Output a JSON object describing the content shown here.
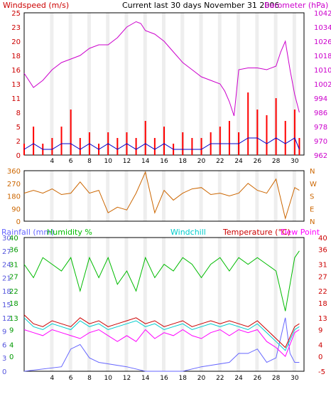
{
  "header": {
    "left_title": "Windspeed (m/s)",
    "center_title": "Current last 30 days November 31 2006",
    "right_title": "Barometer (hPa)"
  },
  "colors": {
    "frame": "#000000",
    "grid_major": "#d8d8d8",
    "wind_gust": "#ff0000",
    "wind_avg": "#0000cc",
    "barometer": "#cc00cc",
    "direction": "#cc6600",
    "rainfall": "#6666ff",
    "humidity": "#00bb00",
    "windchill": "#00cccc",
    "temperature": "#cc0000",
    "dewpoint": "#ff00ff"
  },
  "chart_data": [
    {
      "type": "line",
      "title": "Current last 30 days November 31 2006",
      "xlabel": "",
      "x_ticks": [
        "4",
        "6",
        "8",
        "10",
        "12",
        "14",
        "16",
        "18",
        "20",
        "22",
        "24",
        "26",
        "28",
        "30"
      ],
      "x_range": [
        1,
        31
      ],
      "left_axis": {
        "label": "Windspeed (m/s)",
        "range": [
          0,
          25
        ],
        "ticks": [
          "0",
          "2",
          "5",
          "8",
          "11",
          "13",
          "16",
          "18",
          "20",
          "23",
          "25"
        ]
      },
      "right_axis": {
        "label": "Barometer (hPa)",
        "range": [
          962,
          1042
        ],
        "ticks": [
          "962",
          "970",
          "978",
          "986",
          "994",
          "1002",
          "1010",
          "1018",
          "1026",
          "1034",
          "1042"
        ]
      },
      "series": [
        {
          "name": "Barometer",
          "axis": "right",
          "x": [
            1,
            2,
            3,
            4,
            5,
            6,
            7,
            8,
            9,
            10,
            11,
            12,
            13,
            13.5,
            14,
            15,
            16,
            17,
            18,
            19,
            20,
            21,
            22,
            22.5,
            23,
            23.5,
            24,
            25,
            26,
            27,
            28,
            28.5,
            29,
            29.5,
            30,
            30.5
          ],
          "y": [
            1008,
            1000,
            1004,
            1010,
            1014,
            1016,
            1018,
            1022,
            1024,
            1024,
            1028,
            1034,
            1037,
            1036,
            1032,
            1030,
            1026,
            1020,
            1014,
            1010,
            1006,
            1004,
            1002,
            998,
            992,
            984,
            1010,
            1011,
            1011,
            1010,
            1012,
            1020,
            1026,
            1010,
            996,
            986
          ]
        },
        {
          "name": "Wind gust",
          "axis": "left",
          "x": [
            1,
            2,
            3,
            4,
            5,
            6,
            7,
            8,
            9,
            10,
            11,
            12,
            13,
            14,
            15,
            16,
            17,
            18,
            19,
            20,
            21,
            22,
            23,
            24,
            25,
            26,
            27,
            28,
            29,
            30,
            30.5
          ],
          "y": [
            2,
            5,
            2,
            3,
            5,
            8,
            3,
            4,
            2,
            4,
            3,
            4,
            3,
            6,
            3,
            5,
            2,
            4,
            3,
            3,
            4,
            5,
            6,
            4,
            11,
            8,
            7,
            10,
            6,
            8,
            3
          ]
        },
        {
          "name": "Wind average",
          "axis": "left",
          "x": [
            1,
            2,
            3,
            4,
            5,
            6,
            7,
            8,
            9,
            10,
            11,
            12,
            13,
            14,
            15,
            16,
            17,
            18,
            19,
            20,
            21,
            22,
            23,
            24,
            25,
            26,
            27,
            28,
            29,
            30,
            30.5
          ],
          "y": [
            1,
            2,
            1,
            1,
            2,
            2,
            1,
            2,
            1,
            2,
            1,
            2,
            1,
            2,
            1,
            2,
            1,
            1,
            1,
            1,
            2,
            2,
            2,
            2,
            3,
            3,
            2,
            3,
            2,
            3,
            1
          ]
        }
      ]
    },
    {
      "type": "line",
      "x_ticks": [],
      "x_range": [
        1,
        31
      ],
      "left_axis": {
        "label": "",
        "range": [
          0,
          360
        ],
        "ticks": [
          "0",
          "90",
          "180",
          "270",
          "360"
        ]
      },
      "right_axis": {
        "label": "",
        "range": [
          0,
          360
        ],
        "ticks": [
          "N",
          "E",
          "S",
          "W",
          "N"
        ]
      },
      "series": [
        {
          "name": "Wind direction",
          "axis": "left",
          "x": [
            1,
            2,
            3,
            4,
            5,
            6,
            7,
            8,
            9,
            10,
            11,
            12,
            13,
            14,
            15,
            16,
            17,
            18,
            19,
            20,
            21,
            22,
            23,
            24,
            25,
            26,
            27,
            28,
            29,
            30,
            30.5
          ],
          "y": [
            200,
            220,
            200,
            230,
            190,
            200,
            280,
            200,
            220,
            60,
            100,
            80,
            200,
            350,
            60,
            220,
            150,
            200,
            230,
            240,
            190,
            200,
            180,
            200,
            270,
            220,
            200,
            300,
            20,
            240,
            220
          ]
        }
      ]
    },
    {
      "type": "line",
      "x_ticks": [
        "4",
        "6",
        "8",
        "10",
        "12",
        "14",
        "16",
        "18",
        "20",
        "22",
        "24",
        "26",
        "28",
        "30"
      ],
      "x_range": [
        1,
        31
      ],
      "legend": [
        "Rainfall (mm)",
        "Humidity %",
        "Windchill",
        "Temperature (°C)",
        "Dew Point"
      ],
      "rain_axis": {
        "label": "Rainfall (mm)",
        "range": [
          0,
          30
        ],
        "ticks": [
          "0",
          "3",
          "6",
          "9",
          "12",
          "15",
          "18",
          "21",
          "24",
          "27",
          "30"
        ]
      },
      "humidity_axis": {
        "label": "Humidity %",
        "range": [
          0,
          100
        ],
        "ticks": [
          "0",
          "10",
          "20",
          "30",
          "40",
          "50",
          "60",
          "70",
          "80",
          "90",
          "100"
        ]
      },
      "temp_axis_left": {
        "range": [
          -5,
          40
        ],
        "ticks": [
          "0",
          "4",
          "9",
          "13",
          "18",
          "22",
          "27",
          "31",
          "36",
          "40"
        ]
      },
      "temp_axis_right": {
        "label": "Temperature (°C)",
        "range": [
          -5,
          40
        ],
        "ticks": [
          "-5",
          "0",
          "4",
          "9",
          "13",
          "18",
          "22",
          "27",
          "31",
          "36",
          "40"
        ]
      },
      "series": [
        {
          "name": "Humidity",
          "axis": "humidity",
          "x": [
            1,
            2,
            3,
            4,
            5,
            6,
            7,
            8,
            9,
            10,
            11,
            12,
            13,
            14,
            15,
            16,
            17,
            18,
            19,
            20,
            21,
            22,
            23,
            24,
            25,
            26,
            27,
            28,
            29,
            30,
            30.5
          ],
          "y": [
            80,
            70,
            85,
            80,
            75,
            85,
            60,
            85,
            70,
            85,
            65,
            75,
            60,
            85,
            70,
            80,
            75,
            85,
            80,
            70,
            80,
            85,
            75,
            85,
            80,
            85,
            80,
            75,
            45,
            85,
            90
          ]
        },
        {
          "name": "Temperature",
          "axis": "temp",
          "x": [
            1,
            2,
            3,
            4,
            5,
            6,
            7,
            8,
            9,
            10,
            11,
            12,
            13,
            14,
            15,
            16,
            17,
            18,
            19,
            20,
            21,
            22,
            23,
            24,
            25,
            26,
            27,
            28,
            29,
            30,
            30.5
          ],
          "y": [
            14,
            11,
            10,
            12,
            11,
            10,
            13,
            11,
            12,
            10,
            11,
            12,
            13,
            11,
            12,
            10,
            11,
            12,
            10,
            11,
            12,
            11,
            12,
            11,
            10,
            12,
            9,
            6,
            3,
            10,
            11
          ]
        },
        {
          "name": "Dew Point",
          "axis": "temp",
          "x": [
            1,
            2,
            3,
            4,
            5,
            6,
            7,
            8,
            9,
            10,
            11,
            12,
            13,
            14,
            15,
            16,
            17,
            18,
            19,
            20,
            21,
            22,
            23,
            24,
            25,
            26,
            27,
            28,
            29,
            30,
            30.5
          ],
          "y": [
            9,
            8,
            7,
            9,
            8,
            7,
            6,
            8,
            9,
            7,
            5,
            7,
            5,
            9,
            6,
            8,
            7,
            9,
            7,
            6,
            8,
            9,
            7,
            9,
            8,
            9,
            5,
            3,
            0,
            8,
            9
          ]
        },
        {
          "name": "Windchill",
          "axis": "temp",
          "x": [
            1,
            2,
            3,
            4,
            5,
            6,
            7,
            8,
            9,
            10,
            11,
            12,
            13,
            14,
            15,
            16,
            17,
            18,
            19,
            20,
            21,
            22,
            23,
            24,
            25,
            26,
            27,
            28,
            29,
            30,
            30.5
          ],
          "y": [
            13,
            10,
            9,
            11,
            10,
            9,
            12,
            10,
            11,
            9,
            10,
            11,
            12,
            10,
            11,
            9,
            10,
            11,
            9,
            10,
            11,
            10,
            11,
            10,
            9,
            11,
            8,
            5,
            2,
            9,
            10
          ]
        },
        {
          "name": "Rainfall",
          "axis": "rain",
          "x": [
            1,
            5,
            6,
            7,
            8,
            9,
            12,
            14,
            18,
            20,
            23,
            24,
            25,
            26,
            27,
            28,
            29,
            29.5,
            30,
            30.5
          ],
          "y": [
            0,
            1,
            5,
            6,
            3,
            2,
            1,
            0,
            0,
            1,
            2,
            4,
            4,
            5,
            2,
            3,
            12,
            4,
            2,
            2
          ]
        }
      ]
    }
  ]
}
